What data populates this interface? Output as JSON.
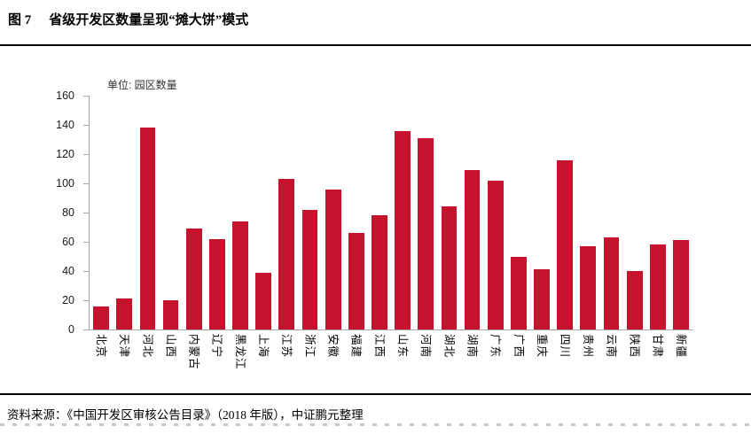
{
  "header": {
    "figure_label": "图 7",
    "title": "省级开发区数量呈现“摊大饼”模式"
  },
  "chart": {
    "unit_label": "单位: 园区数量"
  },
  "footer": {
    "source": "资料来源：《中国开发区审核公告目录》（2018 年版），中证鹏元整理"
  },
  "colors": {
    "bar": "#c5122d",
    "axis": "#a6a6a6",
    "rule": "#000000"
  },
  "chart_data": {
    "type": "bar",
    "title": "省级开发区数量呈现“摊大饼”模式",
    "unit": "园区数量",
    "xlabel": "",
    "ylabel": "",
    "ylim": [
      0,
      160
    ],
    "ytick_step": 20,
    "grid": false,
    "legend": "none",
    "categories": [
      "北京",
      "天津",
      "河北",
      "山西",
      "内蒙古",
      "辽宁",
      "黑龙江",
      "上海",
      "江苏",
      "浙江",
      "安徽",
      "福建",
      "江西",
      "山东",
      "河南",
      "湖北",
      "湖南",
      "广东",
      "广西",
      "重庆",
      "四川",
      "贵州",
      "云南",
      "陕西",
      "甘肃",
      "新疆"
    ],
    "values": [
      16,
      21,
      138,
      20,
      69,
      62,
      74,
      39,
      103,
      82,
      96,
      66,
      78,
      136,
      131,
      84,
      109,
      102,
      50,
      41,
      116,
      57,
      63,
      40,
      58,
      61
    ]
  }
}
